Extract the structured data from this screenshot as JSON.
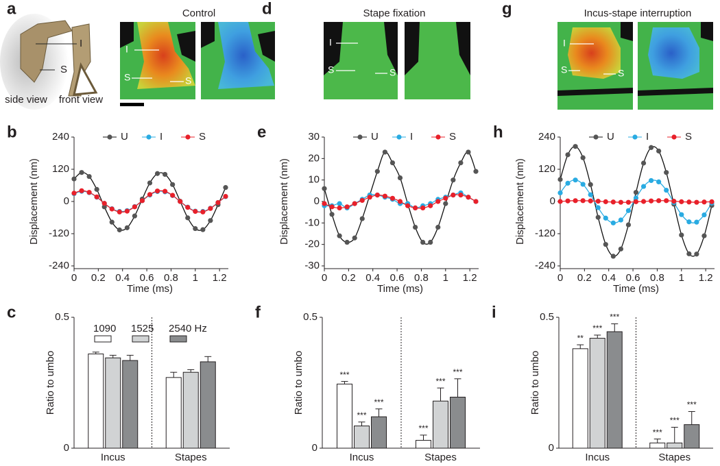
{
  "image_panels": [
    {
      "panel_label": "a",
      "title": "Control",
      "schematic_labels": [
        "I",
        "S",
        "side view",
        "front view"
      ],
      "image_labels": [
        "I",
        "S",
        "S"
      ]
    },
    {
      "panel_label": "d",
      "title": "Stape fixation",
      "image_labels": [
        "I",
        "S",
        "S"
      ]
    },
    {
      "panel_label": "g",
      "title": "Incus-stape interruption",
      "image_labels": [
        "I",
        "S",
        "S"
      ]
    }
  ],
  "chart_data": [
    {
      "type": "line",
      "panel_label": "b",
      "x_label": "Time (ms)",
      "y_label": "Displacement (nm)",
      "x": [
        0,
        0.0625,
        0.125,
        0.1875,
        0.25,
        0.3125,
        0.375,
        0.4375,
        0.5,
        0.5625,
        0.625,
        0.6875,
        0.75,
        0.8125,
        0.875,
        0.9375,
        1.0,
        1.0625,
        1.125,
        1.1875,
        1.25
      ],
      "xlim": [
        0,
        1.25
      ],
      "xticks": [
        0,
        0.2,
        0.4,
        0.6,
        0.8,
        1,
        1.2
      ],
      "ylim": [
        -240,
        240
      ],
      "yticks": [
        -240,
        -120,
        0,
        120,
        240
      ],
      "series": [
        {
          "name": "U",
          "color": "#555555",
          "line_color": "#111111",
          "values": [
            84,
            108,
            93,
            45,
            -20,
            -77,
            -106,
            -98,
            -54,
            9,
            69,
            104,
            101,
            63,
            1,
            -61,
            -101,
            -105,
            -71,
            -12,
            52
          ]
        },
        {
          "name": "I",
          "color": "#29abe2",
          "line_color": "#29abe2",
          "values": [
            29,
            38,
            33,
            16,
            -7,
            -27,
            -37,
            -34,
            -19,
            3,
            24,
            37,
            36,
            22,
            0,
            -21,
            -36,
            -37,
            -25,
            -4,
            18
          ]
        },
        {
          "name": "S",
          "color": "#e8202a",
          "line_color": "#e8202a",
          "values": [
            31,
            40,
            34,
            17,
            -7,
            -28,
            -39,
            -36,
            -20,
            3,
            26,
            39,
            38,
            23,
            0,
            -22,
            -37,
            -39,
            -26,
            -4,
            19
          ]
        }
      ]
    },
    {
      "type": "line",
      "panel_label": "e",
      "x_label": "Time (ms)",
      "y_label": "Displacement (nm)",
      "x": [
        0,
        0.0625,
        0.125,
        0.1875,
        0.25,
        0.3125,
        0.375,
        0.4375,
        0.5,
        0.5625,
        0.625,
        0.6875,
        0.75,
        0.8125,
        0.875,
        0.9375,
        1.0,
        1.0625,
        1.125,
        1.1875,
        1.25
      ],
      "xlim": [
        0,
        1.25
      ],
      "xticks": [
        0,
        0.2,
        0.4,
        0.6,
        0.8,
        1,
        1.2
      ],
      "ylim": [
        -30,
        30
      ],
      "yticks": [
        -30,
        -20,
        -10,
        0,
        10,
        20,
        30
      ],
      "series": [
        {
          "name": "U",
          "color": "#555555",
          "line_color": "#111111",
          "values": [
            6,
            -6,
            -16,
            -19,
            -17,
            -8,
            3,
            14,
            23,
            18,
            11,
            -1,
            -12,
            -19,
            -19,
            -12,
            -1,
            10,
            18,
            23,
            14
          ]
        },
        {
          "name": "I",
          "color": "#29abe2",
          "line_color": "#29abe2",
          "values": [
            -2,
            -2,
            -1,
            -3,
            -1,
            1,
            3,
            3,
            2,
            1,
            -1,
            -1,
            -3,
            -2,
            -1,
            1,
            2,
            3,
            4,
            2,
            0
          ]
        },
        {
          "name": "S",
          "color": "#e8202a",
          "line_color": "#e8202a",
          "values": [
            -1,
            -2.5,
            -3,
            -2.5,
            -1,
            0.5,
            2,
            3,
            2.5,
            1.5,
            0,
            -2,
            -3,
            -3,
            -2,
            0,
            1.5,
            3,
            3,
            2,
            0
          ]
        }
      ]
    },
    {
      "type": "line",
      "panel_label": "h",
      "x_label": "Time (ms)",
      "y_label": "Displacement (nm)",
      "x": [
        0,
        0.0625,
        0.125,
        0.1875,
        0.25,
        0.3125,
        0.375,
        0.4375,
        0.5,
        0.5625,
        0.625,
        0.6875,
        0.75,
        0.8125,
        0.875,
        0.9375,
        1.0,
        1.0625,
        1.125,
        1.1875,
        1.25
      ],
      "xlim": [
        0,
        1.25
      ],
      "xticks": [
        0,
        0.2,
        0.4,
        0.6,
        0.8,
        1,
        1.2
      ],
      "ylim": [
        -240,
        240
      ],
      "yticks": [
        -240,
        -120,
        0,
        120,
        240
      ],
      "series": [
        {
          "name": "U",
          "color": "#555555",
          "line_color": "#111111",
          "values": [
            82,
            174,
            205,
            163,
            63,
            -59,
            -160,
            -204,
            -177,
            -87,
            34,
            143,
            201,
            188,
            108,
            -10,
            -125,
            -195,
            -196,
            -128,
            -15
          ]
        },
        {
          "name": "I",
          "color": "#29abe2",
          "line_color": "#29abe2",
          "values": [
            32,
            68,
            80,
            64,
            25,
            -23,
            -62,
            -80,
            -69,
            -34,
            13,
            56,
            78,
            73,
            42,
            -4,
            -49,
            -76,
            -77,
            -50,
            -6
          ]
        },
        {
          "name": "S",
          "color": "#e8202a",
          "line_color": "#e8202a",
          "values": [
            0,
            2,
            3,
            3,
            2,
            1,
            -1,
            -2,
            -3,
            -3,
            -1,
            0,
            2,
            3,
            3,
            1,
            -1,
            -2,
            -3,
            -2,
            -1
          ]
        }
      ]
    },
    {
      "type": "bar",
      "panel_label": "c",
      "x_label": null,
      "y_label": "Ratio to umbo",
      "categories": [
        "Incus",
        "Stapes"
      ],
      "ylim": [
        0,
        0.5
      ],
      "yticks": [
        0,
        0.5
      ],
      "series": [
        {
          "name": "1090",
          "color": "#ffffff",
          "values": [
            0.36,
            0.27
          ],
          "errors": [
            0.007,
            0.02
          ]
        },
        {
          "name": "1525",
          "color": "#d1d3d4",
          "values": [
            0.345,
            0.29
          ],
          "errors": [
            0.01,
            0.01
          ]
        },
        {
          "name": "2540 Hz",
          "color": "#8a8c8e",
          "values": [
            0.335,
            0.33
          ],
          "errors": [
            0.02,
            0.02
          ]
        }
      ]
    },
    {
      "type": "bar",
      "panel_label": "f",
      "y_label": "Ratio to umbo",
      "categories": [
        "Incus",
        "Stapes"
      ],
      "ylim": [
        0,
        0.5
      ],
      "yticks": [
        0,
        0.5
      ],
      "series": [
        {
          "color": "#ffffff",
          "values": [
            0.245,
            0.03
          ],
          "errors": [
            0.01,
            0.02
          ],
          "annotations": [
            "***",
            "***"
          ]
        },
        {
          "color": "#d1d3d4",
          "values": [
            0.085,
            0.18
          ],
          "errors": [
            0.015,
            0.05
          ],
          "annotations": [
            "***",
            "***"
          ]
        },
        {
          "color": "#8a8c8e",
          "values": [
            0.12,
            0.195
          ],
          "errors": [
            0.03,
            0.07
          ],
          "annotations": [
            "***",
            "***"
          ]
        }
      ]
    },
    {
      "type": "bar",
      "panel_label": "i",
      "y_label": "Ratio to umbo",
      "categories": [
        "Incus",
        "Stapes"
      ],
      "ylim": [
        0,
        0.5
      ],
      "yticks": [
        0,
        0.5
      ],
      "series": [
        {
          "color": "#ffffff",
          "values": [
            0.38,
            0.02
          ],
          "errors": [
            0.015,
            0.015
          ],
          "annotations": [
            "**",
            "***"
          ]
        },
        {
          "color": "#d1d3d4",
          "values": [
            0.42,
            0.02
          ],
          "errors": [
            0.012,
            0.06
          ],
          "annotations": [
            "***",
            "***"
          ]
        },
        {
          "color": "#8a8c8e",
          "values": [
            0.445,
            0.09
          ],
          "errors": [
            0.03,
            0.05
          ],
          "annotations": [
            "***",
            "***"
          ]
        }
      ]
    }
  ]
}
